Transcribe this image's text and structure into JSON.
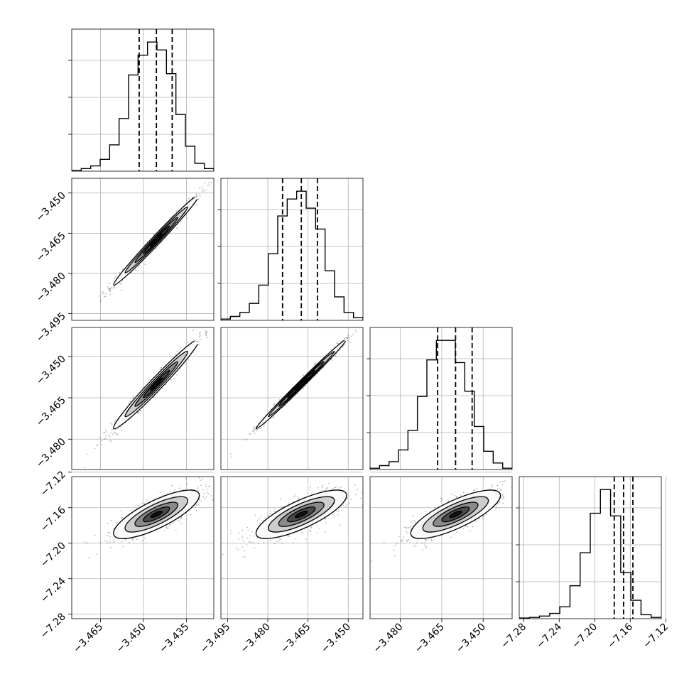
{
  "chart_data": {
    "type": "corner",
    "n_params": 4,
    "parameter_ranges": [
      [
        -3.475,
        -3.4255
      ],
      [
        -3.4975,
        -3.4445
      ],
      [
        -3.491,
        -3.4395
      ],
      [
        -7.285,
        -7.125
      ]
    ],
    "tick_values": [
      [
        -3.465,
        -3.45,
        -3.435
      ],
      [
        -3.495,
        -3.48,
        -3.465,
        -3.45
      ],
      [
        -3.48,
        -3.465,
        -3.45
      ],
      [
        -7.28,
        -7.24,
        -7.2,
        -7.16,
        -7.12
      ]
    ],
    "tick_labels": [
      [
        "−3.465",
        "−3.450",
        "−3.435"
      ],
      [
        "−3.495",
        "−3.480",
        "−3.465",
        "−3.450"
      ],
      [
        "−3.480",
        "−3.465",
        "−3.450"
      ],
      [
        "−7.28",
        "−7.24",
        "−7.20",
        "−7.16",
        "−7.12"
      ]
    ],
    "quantiles": [
      [
        -3.4515,
        -3.4455,
        -3.44
      ],
      [
        -3.4745,
        -3.4675,
        -3.4615
      ],
      [
        -3.4665,
        -3.46,
        -3.454
      ],
      [
        -7.178,
        -7.1675,
        -7.157
      ]
    ],
    "histograms": [
      [
        0.005,
        0.02,
        0.04,
        0.09,
        0.2,
        0.4,
        0.73,
        0.88,
        0.98,
        0.92,
        0.74,
        0.43,
        0.19,
        0.06,
        0.02
      ],
      [
        0.01,
        0.03,
        0.06,
        0.13,
        0.27,
        0.51,
        0.8,
        0.93,
        0.99,
        0.86,
        0.7,
        0.38,
        0.18,
        0.06,
        0.02
      ],
      [
        0.01,
        0.03,
        0.06,
        0.15,
        0.3,
        0.56,
        0.84,
        0.99,
        0.99,
        0.82,
        0.6,
        0.33,
        0.14,
        0.05,
        0.01
      ],
      [
        0.005,
        0.01,
        0.02,
        0.04,
        0.09,
        0.25,
        0.5,
        0.8,
        0.98,
        0.78,
        0.35,
        0.14,
        0.03,
        0.01
      ]
    ],
    "correlations": [
      [
        1.0,
        0.99,
        0.98,
        0.78
      ],
      [
        0.99,
        1.0,
        0.995,
        0.78
      ],
      [
        0.98,
        0.995,
        1.0,
        0.78
      ],
      [
        0.78,
        0.78,
        0.78,
        1.0
      ]
    ],
    "contour_colors": [
      "#fafafa",
      "#cdcdcd",
      "#8a8a8a",
      "#4a4a4a",
      "#111111"
    ],
    "grid": true
  }
}
